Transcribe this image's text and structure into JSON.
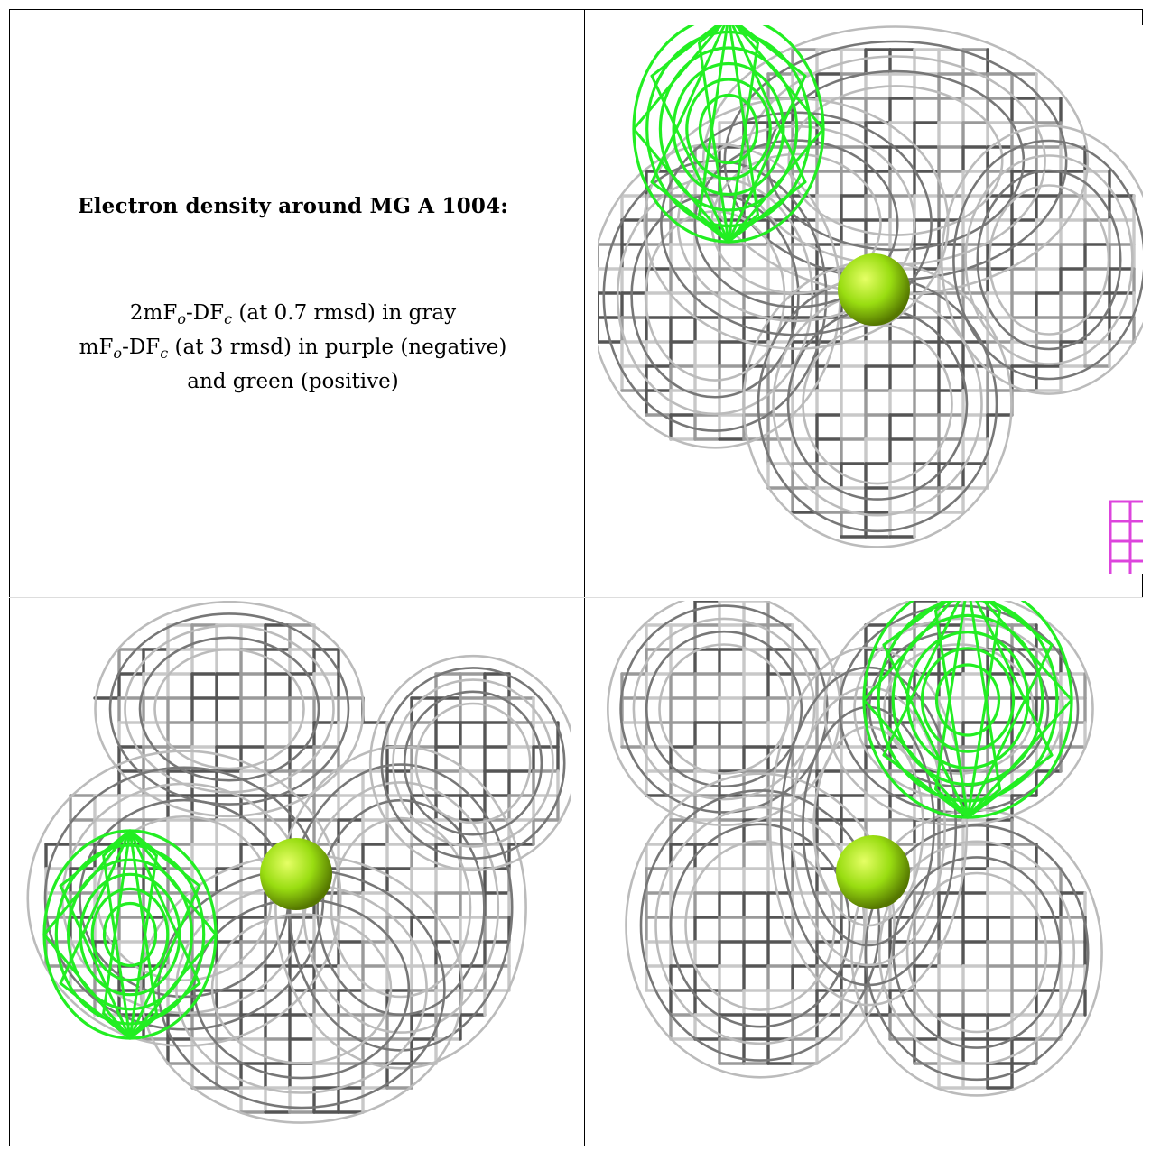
{
  "caption": {
    "title": "Electron density around MG A 1004:",
    "lines": [
      {
        "pre": "2mF",
        "sub1": "o",
        "mid": "-DF",
        "sub2": "c",
        "post": " (at 0.7 rmsd) in gray"
      },
      {
        "pre": "mF",
        "sub1": "o",
        "mid": "-DF",
        "sub2": "c",
        "post": " (at 3 rmsd) in purple (negative)"
      },
      {
        "pre": "and green (positive)",
        "sub1": "",
        "mid": "",
        "sub2": "",
        "post": ""
      }
    ]
  },
  "colors": {
    "gray_mesh_dark": "#555555",
    "gray_mesh_light": "#c8c8c8",
    "positive_mesh": "#22ee22",
    "negative_mesh": "#dd44dd",
    "magnesium_atom": "#99dd11"
  },
  "panels": [
    {
      "name": "view-top-right",
      "ion": "MG A 1004"
    },
    {
      "name": "view-bottom-left",
      "ion": "MG A 1004"
    },
    {
      "name": "view-bottom-right",
      "ion": "MG A 1004"
    }
  ]
}
